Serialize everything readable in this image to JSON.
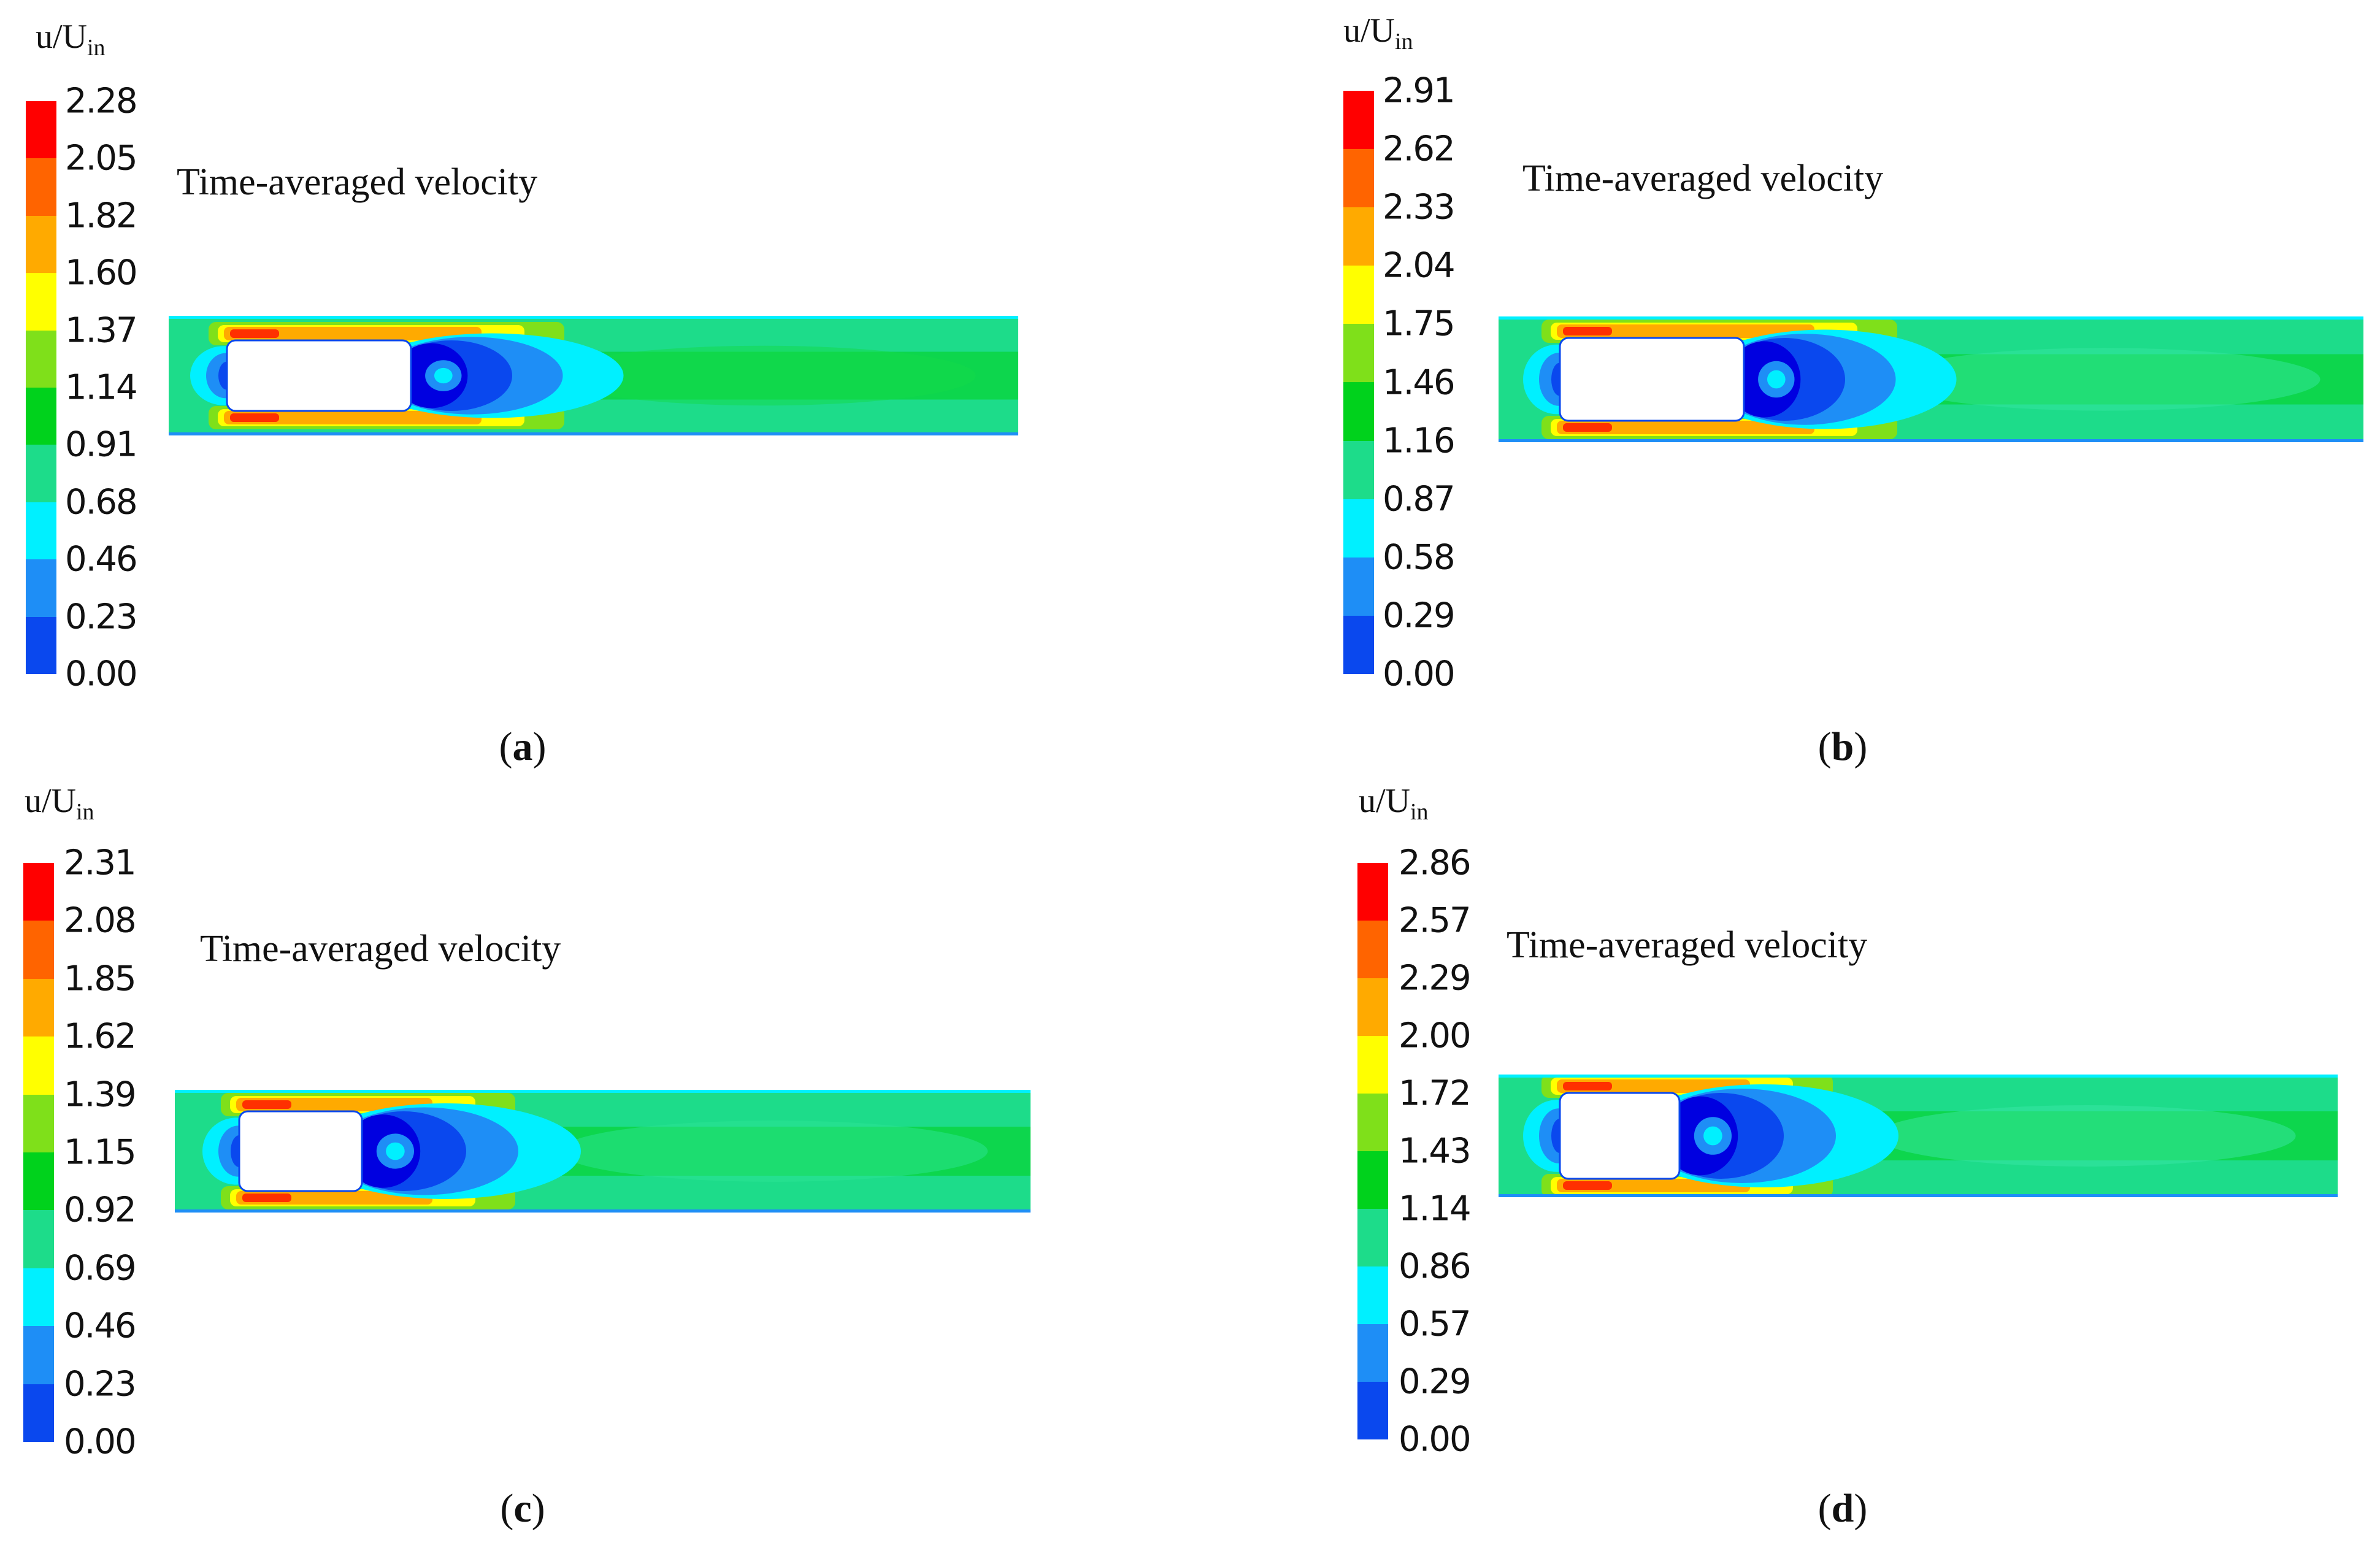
{
  "colormap": [
    "#0000e0",
    "#0a48ee",
    "#1e8ef6",
    "#00f0ff",
    "#1ddc8a",
    "#00d21c",
    "#7fe01a",
    "#ffff00",
    "#ffaa00",
    "#ff6400",
    "#ff0000"
  ],
  "panels": [
    {
      "id": "a",
      "legend_title": "u/U",
      "legend_title_sub": "in",
      "ticks": [
        "2.28",
        "2.05",
        "1.82",
        "1.60",
        "1.37",
        "1.14",
        "0.91",
        "0.68",
        "0.46",
        "0.23",
        "0.00"
      ],
      "plot_caption": "Time-averaged velocity",
      "label": "a"
    },
    {
      "id": "b",
      "legend_title": "u/U",
      "legend_title_sub": "in",
      "ticks": [
        "2.91",
        "2.62",
        "2.33",
        "2.04",
        "1.75",
        "1.46",
        "1.16",
        "0.87",
        "0.58",
        "0.29",
        "0.00"
      ],
      "plot_caption": "Time-averaged velocity",
      "label": "b"
    },
    {
      "id": "c",
      "legend_title": "u/U",
      "legend_title_sub": "in",
      "ticks": [
        "2.31",
        "2.08",
        "1.85",
        "1.62",
        "1.39",
        "1.15",
        "0.92",
        "0.69",
        "0.46",
        "0.23",
        "0.00"
      ],
      "plot_caption": "Time-averaged velocity",
      "label": "c"
    },
    {
      "id": "d",
      "legend_title": "u/U",
      "legend_title_sub": "in",
      "ticks": [
        "2.86",
        "2.57",
        "2.29",
        "2.00",
        "1.72",
        "1.43",
        "1.14",
        "0.86",
        "0.57",
        "0.29",
        "0.00"
      ],
      "plot_caption": "Time-averaged velocity",
      "label": "d"
    }
  ]
}
